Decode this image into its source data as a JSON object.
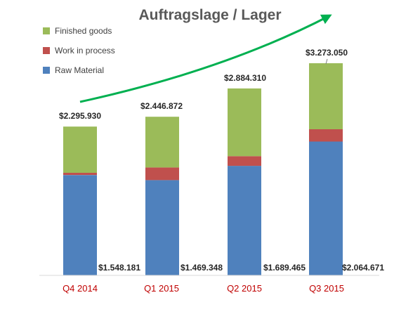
{
  "chart_data": {
    "type": "bar",
    "stacked": true,
    "title": "Auftragslage / Lager",
    "categories": [
      "Q4 2014",
      "Q1 2015",
      "Q2 2015",
      "Q3 2015"
    ],
    "series": [
      {
        "name": "Raw Material",
        "color": "#4f81bd",
        "values": [
          1548181,
          1469348,
          1689465,
          2064671
        ]
      },
      {
        "name": "Work in process",
        "color": "#c0504d",
        "values": [
          35000,
          195000,
          150000,
          190000
        ]
      },
      {
        "name": "Finished goods",
        "color": "#9bbb59",
        "values": [
          712749,
          782524,
          1044845,
          1018379
        ]
      }
    ],
    "totals": [
      2295930,
      2446872,
      2884310,
      3273050
    ],
    "total_labels": [
      "$2.295.930",
      "$2.446.872",
      "$2.884.310",
      "$3.273.050"
    ],
    "raw_labels": [
      "$1.548.181",
      "$1.469.348",
      "$1.689.465",
      "$2.064.671"
    ],
    "legend_order": [
      "Finished goods",
      "Work in process",
      "Raw Material"
    ],
    "legend_position": "top-left",
    "trend_arrow": {
      "color": "#00b050"
    },
    "category_label_color": "#c00000",
    "ylim": [
      0,
      3500000
    ],
    "grid": false
  }
}
